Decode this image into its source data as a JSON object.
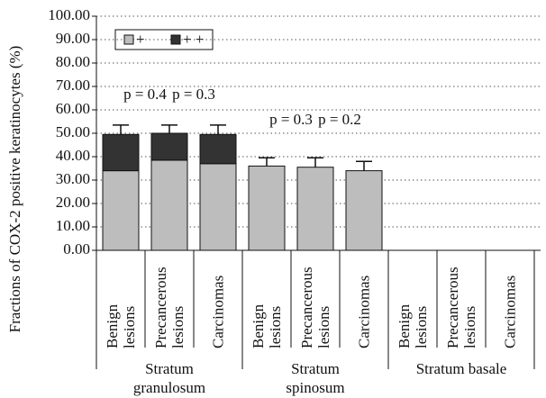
{
  "chart_data": {
    "type": "stacked_bar",
    "y_label": "Fractions of COX-2 positive keratinocytes (%)",
    "groups": [
      "Stratum granulosum",
      "Stratum spinosum",
      "Stratum basale"
    ],
    "categories": [
      "Benign lesions",
      "Precancerous lesions",
      "Carcinomas",
      "Benign lesions",
      "Precancerous lesions",
      "Carcinomas",
      "Benign lesions",
      "Precancerous lesions",
      "Carcinomas"
    ],
    "series": [
      {
        "name": "+",
        "color": "#bdbdbd",
        "values": [
          34,
          38.5,
          37,
          36,
          35.5,
          34,
          null,
          null,
          null
        ]
      },
      {
        "name": "+ +",
        "color": "#333333",
        "values": [
          15.5,
          11.5,
          12.5,
          null,
          null,
          null,
          null,
          null,
          null
        ]
      }
    ],
    "errors": [
      4,
      3.5,
      4,
      3.5,
      4,
      4,
      null,
      null,
      null
    ],
    "annotations": [
      "p = 0.4",
      "p = 0.3",
      "p = 0.3",
      "p = 0.2"
    ],
    "ylim": [
      0,
      100
    ],
    "yticks": [
      {
        "value": 0,
        "label": "0.00"
      },
      {
        "value": 10,
        "label": "10.00"
      },
      {
        "value": 20,
        "label": "20.00"
      },
      {
        "value": 30,
        "label": "30.00"
      },
      {
        "value": 40,
        "label": "40.00"
      },
      {
        "value": 50,
        "label": "50.00"
      },
      {
        "value": 60,
        "label": "60.00"
      },
      {
        "value": 70,
        "label": "70.00"
      },
      {
        "value": 80,
        "label": "80.00"
      },
      {
        "value": 90,
        "label": "90.00"
      },
      {
        "value": 100,
        "label": "100.00"
      }
    ],
    "grid": true
  }
}
